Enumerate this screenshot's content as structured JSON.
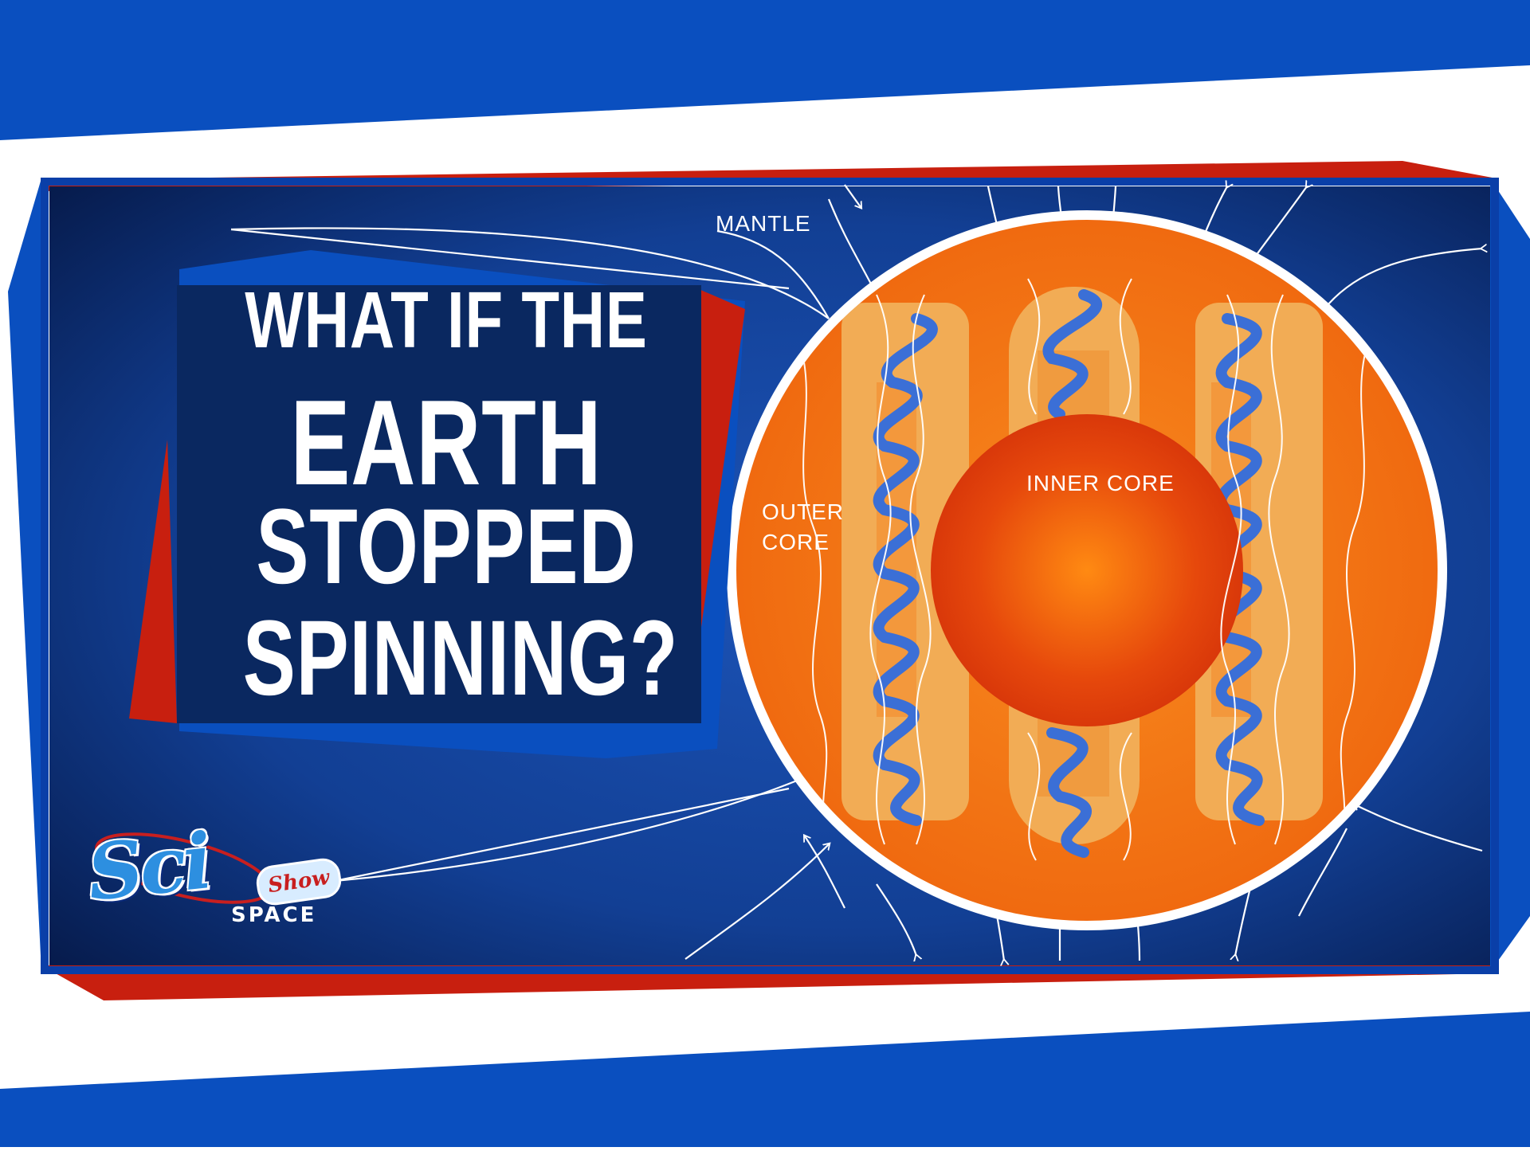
{
  "title": {
    "lines": [
      "WHAT IF THE",
      "EARTH",
      "STOPPED",
      "SPINNING?"
    ]
  },
  "diagram": {
    "labels": {
      "mantle": "MANTLE",
      "inner_core": "INNER CORE",
      "outer_core": "OUTER\nCORE"
    }
  },
  "logo": {
    "sci": "Sci",
    "show": "Show",
    "space": "SPACE"
  },
  "colors": {
    "frame_blue": "#0a4fbf",
    "panel_dark": "#0b2a6e",
    "accent_red": "#c81f0f",
    "outer_core": "#f47a16",
    "inner_core": "#e0400a",
    "column": "#f2ac55",
    "helix": "#3b6fd6"
  }
}
